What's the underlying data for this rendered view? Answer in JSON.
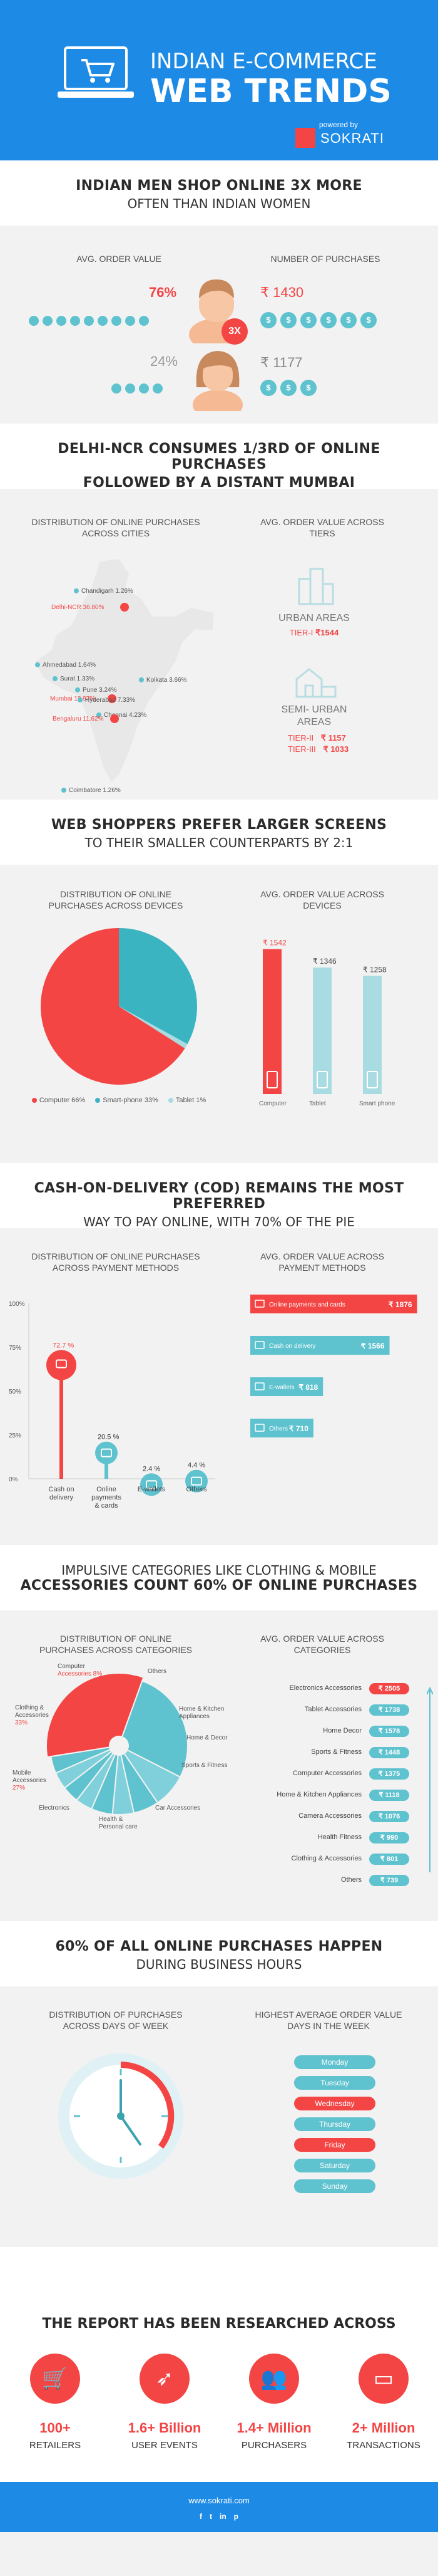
{
  "header": {
    "line1": "INDIAN E-COMMERCE",
    "line2": "WEB TRENDS",
    "powered_by": "powered by",
    "brand": "SOKRATI"
  },
  "s1": {
    "title_line1": "INDIAN MEN SHOP ONLINE 3X MORE",
    "title_line2": "OFTEN THAN INDIAN WOMEN",
    "col1": "AVG. ORDER VALUE",
    "col2": "NUMBER OF PURCHASES",
    "men": {
      "pct": "76%",
      "value": "₹ 1430",
      "badge": "3X",
      "coins": 6
    },
    "women": {
      "pct": "24%",
      "value": "₹ 1177",
      "coins": 3
    },
    "chart_data": {
      "type": "table",
      "rows": [
        {
          "group": "Men",
          "share": "76%",
          "avg_order_value": 1430
        },
        {
          "group": "Women",
          "share": "24%",
          "avg_order_value": 1177
        }
      ]
    }
  },
  "s2": {
    "title_line1": "DELHI-NCR CONSUMES 1/3rd OF ONLINE PURCHASES",
    "title_line2": "FOLLOWED BY A DISTANT MUMBAI",
    "col1": "DISTRIBUTION OF ONLINE PURCHASES ACROSS CITIES",
    "col2": "AVG. ORDER VALUE ACROSS TIERS",
    "cities": [
      {
        "name": "Chandigarh",
        "pct": "1.26%",
        "hi": false
      },
      {
        "name": "Delhi-NCR",
        "pct": "36.80%",
        "hi": true
      },
      {
        "name": "Ahmedabad",
        "pct": "1.64%",
        "hi": false
      },
      {
        "name": "Surat",
        "pct": "1.33%",
        "hi": false
      },
      {
        "name": "Pune",
        "pct": "3.24%",
        "hi": false
      },
      {
        "name": "Mumbai",
        "pct": "18.97%",
        "hi": true
      },
      {
        "name": "Hyderabad",
        "pct": "7.33%",
        "hi": false
      },
      {
        "name": "Kolkata",
        "pct": "3.66%",
        "hi": false
      },
      {
        "name": "Chennai",
        "pct": "4.23%",
        "hi": false
      },
      {
        "name": "Bengaluru",
        "pct": "11.62%",
        "hi": true
      },
      {
        "name": "Coimbatore",
        "pct": "1.26%",
        "hi": false
      }
    ],
    "urban": {
      "label": "URBAN AREAS",
      "tier": "TIER-I",
      "value": "₹1544"
    },
    "semi": {
      "label1": "SEMI- URBAN",
      "label2": "AREAS",
      "tier2": "TIER-II",
      "value2": "₹ 1157",
      "tier3": "TIER-III",
      "value3": "₹ 1033"
    }
  },
  "s3": {
    "title_line1": "WEB SHOPPERS PREFER LARGER SCREENS",
    "title_line2": "TO THEIR SMALLER COUNTERPARTS BY 2:1",
    "col1": "DISTRIBUTION OF ONLINE PURCHASES ACROSS DEVICES",
    "col2": "AVG. ORDER VALUE ACROSS DEVICES",
    "pie_legend": [
      {
        "label": "Computer 66%",
        "color": "#f44545"
      },
      {
        "label": "Smart-phone 33%",
        "color": "#3bb4c1"
      },
      {
        "label": "Tablet 1%",
        "color": "#a9dbe2"
      }
    ],
    "bar_values": [
      {
        "label": "Computer",
        "value": "₹ 1542"
      },
      {
        "label": "Tablet",
        "value": "₹ 1346"
      },
      {
        "label": "Smart phone",
        "value": "₹ 1258"
      }
    ],
    "chart_data": [
      {
        "type": "pie",
        "labels": [
          "Computer",
          "Smart-phone",
          "Tablet"
        ],
        "values": [
          66,
          33,
          1
        ]
      },
      {
        "type": "bar",
        "categories": [
          "Computer",
          "Tablet",
          "Smart phone"
        ],
        "values": [
          1542,
          1346,
          1258
        ]
      }
    ]
  },
  "s4": {
    "title_line1": "CASH-ON-DELIVERY (COD) REMAINS THE MOST PREFERRED",
    "title_line2": "WAY TO PAY ONLINE, WITH 70% OF THE PIE",
    "col1": "DISTRIBUTION OF ONLINE PURCHASES ACROSS PAYMENT METHODS",
    "col2": "AVG. ORDER VALUE ACROSS PAYMENT METHODS",
    "yticks": [
      "100%",
      "75%",
      "50%",
      "25%",
      "0%"
    ],
    "lollipops": [
      {
        "pct": "72.7 %",
        "label1": "Cash on",
        "label2": "delivery",
        "label3": ""
      },
      {
        "pct": "20.5 %",
        "label1": "Online",
        "label2": "payments",
        "label3": "& cards"
      },
      {
        "pct": "2.4 %",
        "label1": "E-wallets",
        "label2": "",
        "label3": ""
      },
      {
        "pct": "4.4 %",
        "label1": "Others",
        "label2": "",
        "label3": ""
      }
    ],
    "methods": [
      {
        "label": "Online payments and cards",
        "value": "₹ 1876"
      },
      {
        "label": "Cash on delivery",
        "value": "₹ 1566"
      },
      {
        "label": "E-wallets",
        "value": "₹ 818"
      },
      {
        "label": "Others",
        "value": "₹ 710"
      }
    ],
    "chart_data": [
      {
        "type": "bar",
        "categories": [
          "Cash on delivery",
          "Online payments & cards",
          "E-wallets",
          "Others"
        ],
        "values": [
          72.7,
          20.5,
          2.4,
          4.4
        ],
        "ylim": [
          0,
          100
        ]
      },
      {
        "type": "bar",
        "categories": [
          "Online payments and cards",
          "Cash on delivery",
          "E-wallets",
          "Others"
        ],
        "values": [
          1876,
          1566,
          818,
          710
        ]
      }
    ]
  },
  "s5": {
    "title_line1": "IMPULSIVE CATEGORIES LIKE CLOTHING & MOBILE",
    "title_line2": "ACCESSORIES COUNT 60% OF ONLINE PURCHASES",
    "col1": "DISTRIBUTION OF ONLINE PURCHASES ACROSS CATEGORIES",
    "col2": "AVG. ORDER VALUE ACROSS CATEGORIES",
    "pie_labels": {
      "computer": "Computer",
      "computer_pct": "Accessories 8%",
      "others": "Others",
      "clothing1": "Clothing &",
      "clothing2": "Accessories",
      "clothing3": "33%",
      "mobile1": "Mobile",
      "mobile2": "Accessories",
      "mobile3": "27%",
      "electronics": "Electronics",
      "health1": "Health &",
      "health2": "Personal care",
      "car": "Car Accessories",
      "sports": "Sports & Fitness",
      "home_decor": "Home & Decor",
      "home_kitchen1": "Home & Kitchen",
      "home_kitchen2": "Appliances"
    },
    "categories": [
      {
        "label": "Electronics Accessories",
        "value": "₹ 2505"
      },
      {
        "label": "Tablet Accessories",
        "value": "₹ 1738"
      },
      {
        "label": "Home Decor",
        "value": "₹ 1578"
      },
      {
        "label": "Sports & Fitness",
        "value": "₹ 1448"
      },
      {
        "label": "Computer Accessories",
        "value": "₹ 1375"
      },
      {
        "label": "Home & Kitchen Appliances",
        "value": "₹ 1118"
      },
      {
        "label": "Camera Accessories",
        "value": "₹ 1076"
      },
      {
        "label": "Health Fitness",
        "value": "₹ 990"
      },
      {
        "label": "Clothing & Accessories",
        "value": "₹ 801"
      },
      {
        "label": "Others",
        "value": "₹ 739"
      }
    ],
    "chart_data": {
      "type": "bar",
      "categories": [
        "Electronics Accessories",
        "Tablet Accessories",
        "Home Decor",
        "Sports & Fitness",
        "Computer Accessories",
        "Home & Kitchen Appliances",
        "Camera Accessories",
        "Health Fitness",
        "Clothing & Accessories",
        "Others"
      ],
      "values": [
        2505,
        1738,
        1578,
        1448,
        1375,
        1118,
        1076,
        990,
        801,
        739
      ]
    }
  },
  "s6": {
    "title_line1": "60% OF ALL ONLINE PURCHASES HAPPEN",
    "title_line2": "DURING BUSINESS HOURS",
    "col1": "DISTRIBUTION OF PURCHASES ACROSS DAYS OF WEEK",
    "col2": "HIGHEST AVERAGE ORDER VALUE DAYS IN THE WEEK",
    "days": [
      {
        "label": "Monday",
        "hi": false
      },
      {
        "label": "Tuesday",
        "hi": false
      },
      {
        "label": "Wednesday",
        "hi": true
      },
      {
        "label": "Thursday",
        "hi": false
      },
      {
        "label": "Friday",
        "hi": true
      },
      {
        "label": "Saturday",
        "hi": false
      },
      {
        "label": "Sunday",
        "hi": false
      }
    ]
  },
  "s7": {
    "title": "THE REPORT HAS BEEN RESEARCHED ACROSS",
    "stats": [
      {
        "num": "100+",
        "label": "RETAILERS",
        "icon": "cart-icon"
      },
      {
        "num": "1.6+ Billion",
        "label": "USER EVENTS",
        "icon": "cursor-click-icon"
      },
      {
        "num": "1.4+ Million",
        "label": "PURCHASERS",
        "icon": "people-icon"
      },
      {
        "num": "2+ Million",
        "label": "TRANSACTIONS",
        "icon": "card-icon"
      }
    ]
  },
  "footer": {
    "url": "www.sokrati.com",
    "social": [
      "f",
      "t",
      "in",
      "p"
    ]
  },
  "colors": {
    "blue": "#1d8be6",
    "red": "#f44545",
    "teal": "#5ec2cf",
    "light_teal": "#a9dbe2",
    "bg": "#f2f2f2"
  }
}
